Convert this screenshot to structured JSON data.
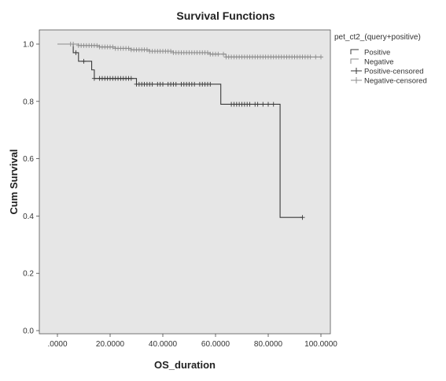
{
  "chart_data": {
    "type": "line",
    "title": "Survival Functions",
    "xlabel": "OS_duration",
    "ylabel": "Cum Survival",
    "xlim": [
      0,
      100
    ],
    "ylim": [
      0,
      1.0
    ],
    "x_ticks": [
      ".0000",
      "20.0000",
      "40.0000",
      "60.0000",
      "80.0000",
      "100.0000"
    ],
    "x_tick_values": [
      0,
      20,
      40,
      60,
      80,
      100
    ],
    "y_ticks": [
      "0.0",
      "0.2",
      "0.4",
      "0.6",
      "0.8",
      "1.0"
    ],
    "y_tick_values": [
      0,
      0.2,
      0.4,
      0.6,
      0.8,
      1.0
    ],
    "grid": false,
    "legend": {
      "title": "pet_ct2_(query+positive)",
      "position": "right",
      "entries": [
        "Positive",
        "Negative",
        "Positive-censored",
        "Negative-censored"
      ]
    },
    "series": [
      {
        "name": "Positive",
        "color": "#3a3a3a",
        "steps": [
          [
            0,
            1.0
          ],
          [
            6,
            0.97
          ],
          [
            8,
            0.94
          ],
          [
            13,
            0.91
          ],
          [
            14,
            0.88
          ],
          [
            30,
            0.86
          ],
          [
            62,
            0.79
          ],
          [
            84.5,
            0.395
          ],
          [
            93,
            0.395
          ]
        ],
        "censored": [
          7,
          10,
          14,
          16,
          17,
          18,
          19,
          20,
          21,
          22,
          23,
          24,
          25,
          26,
          27,
          28,
          30,
          31,
          32,
          33,
          34,
          35,
          36,
          38,
          39,
          40,
          42,
          43,
          44,
          45,
          47,
          48,
          49,
          50,
          51,
          52,
          54,
          55,
          56,
          57,
          58,
          66,
          67,
          68,
          69,
          70,
          71,
          72,
          73,
          75,
          76,
          78,
          80,
          82,
          93
        ]
      },
      {
        "name": "Negative",
        "color": "#8c8c8c",
        "steps": [
          [
            0,
            1.0
          ],
          [
            8,
            0.995
          ],
          [
            16,
            0.99
          ],
          [
            22,
            0.985
          ],
          [
            28,
            0.98
          ],
          [
            35,
            0.975
          ],
          [
            44,
            0.97
          ],
          [
            58,
            0.965
          ],
          [
            64,
            0.955
          ],
          [
            100,
            0.955
          ]
        ],
        "censored": [
          5,
          6,
          8,
          9,
          10,
          11,
          12,
          13,
          14,
          15,
          16,
          17,
          18,
          19,
          20,
          21,
          22,
          23,
          24,
          25,
          26,
          27,
          28,
          29,
          30,
          31,
          32,
          33,
          34,
          35,
          36,
          37,
          38,
          39,
          40,
          41,
          42,
          43,
          44,
          45,
          46,
          47,
          48,
          49,
          50,
          51,
          52,
          53,
          54,
          55,
          56,
          57,
          58,
          59,
          60,
          61,
          63,
          64,
          65,
          66,
          67,
          68,
          69,
          70,
          71,
          72,
          73,
          74,
          75,
          76,
          77,
          78,
          79,
          80,
          81,
          82,
          83,
          84,
          85,
          86,
          87,
          88,
          89,
          90,
          91,
          92,
          93,
          94,
          95,
          96,
          98,
          100
        ]
      }
    ]
  }
}
